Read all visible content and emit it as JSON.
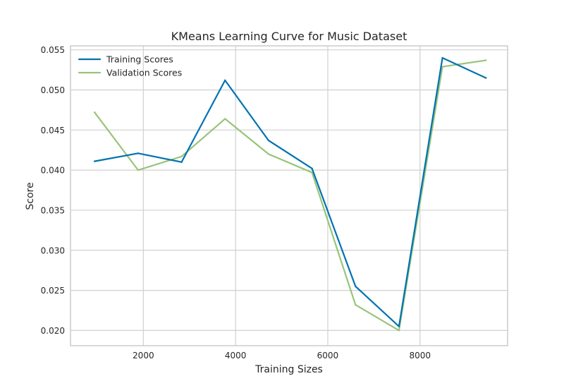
{
  "chart_data": {
    "type": "line",
    "title": "KMeans Learning Curve for Music Dataset",
    "xlabel": "Training Sizes",
    "ylabel": "Score",
    "xlim": [
      420,
      9900
    ],
    "ylim": [
      0.0181,
      0.0555
    ],
    "xticks": [
      2000,
      4000,
      6000,
      8000
    ],
    "xtick_labels": [
      "2000",
      "4000",
      "6000",
      "8000"
    ],
    "yticks": [
      0.02,
      0.025,
      0.03,
      0.035,
      0.04,
      0.045,
      0.05,
      0.055
    ],
    "ytick_labels": [
      "0.020",
      "0.025",
      "0.030",
      "0.035",
      "0.040",
      "0.045",
      "0.050",
      "0.055"
    ],
    "grid": true,
    "legend_position": "top-left",
    "x": [
      943,
      1886,
      2829,
      3772,
      4715,
      5658,
      6601,
      7544,
      8487,
      9430
    ],
    "series": [
      {
        "name": "Training Scores",
        "color": "#0072B2",
        "values": [
          0.0411,
          0.0421,
          0.041,
          0.0512,
          0.0437,
          0.0402,
          0.0255,
          0.0205,
          0.054,
          0.0515
        ]
      },
      {
        "name": "Validation Scores",
        "color": "#98C47A",
        "values": [
          0.0472,
          0.04,
          0.0417,
          0.0464,
          0.042,
          0.0397,
          0.0232,
          0.02,
          0.0529,
          0.0537
        ]
      }
    ]
  }
}
